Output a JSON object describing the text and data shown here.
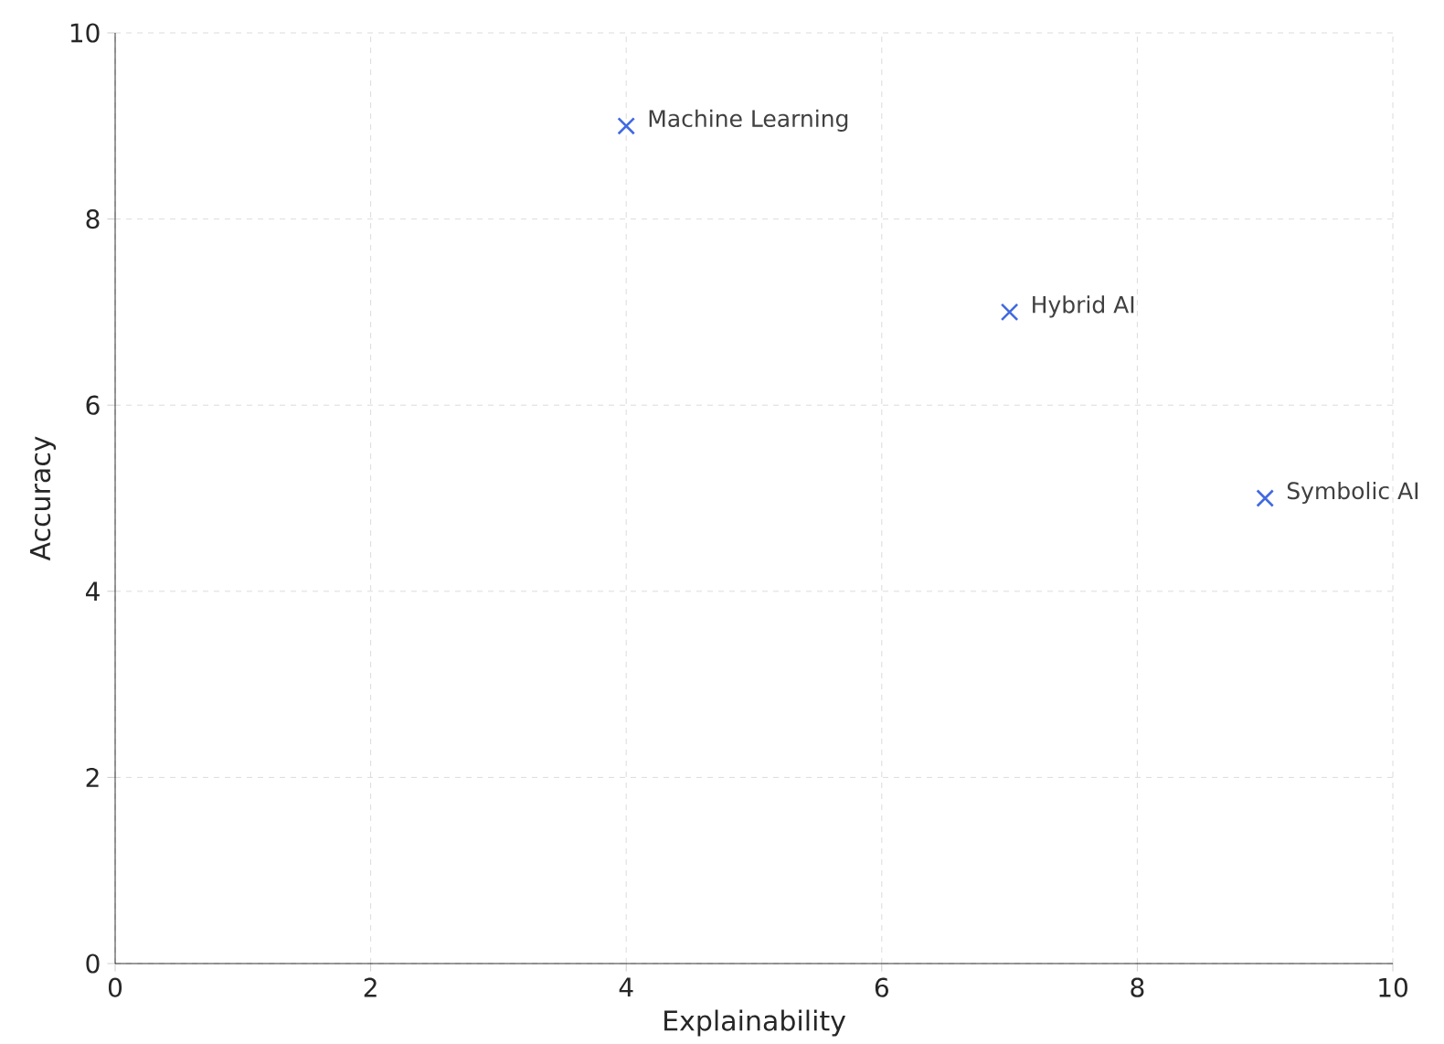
{
  "chart_data": {
    "type": "scatter",
    "xlabel": "Explainability",
    "ylabel": "Accuracy",
    "x": [
      4,
      7,
      9
    ],
    "values": [
      9,
      7,
      5
    ],
    "color": "#4169e1",
    "marker": "cross",
    "xlim": [
      0,
      10
    ],
    "ylim": [
      0,
      10
    ],
    "xticks": [
      0,
      2,
      4,
      6,
      8,
      10
    ],
    "yticks": [
      0,
      2,
      4,
      6,
      8,
      10
    ],
    "grid": true,
    "annotations": [
      {
        "text": "Machine Learning",
        "x": 4,
        "y": 9
      },
      {
        "text": "Hybrid AI",
        "x": 7,
        "y": 7
      },
      {
        "text": "Symbolic AI",
        "x": 9,
        "y": 5
      }
    ]
  }
}
